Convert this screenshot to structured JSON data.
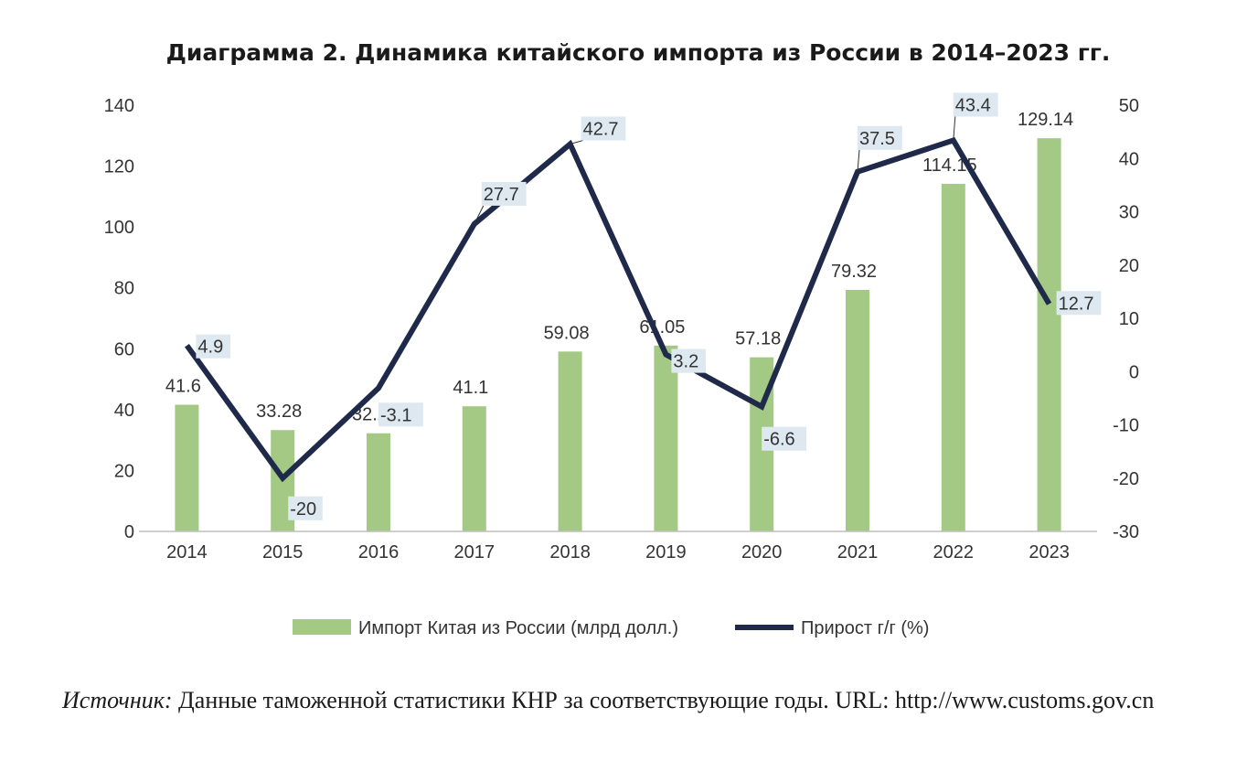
{
  "chart_data": {
    "type": "bar+line",
    "title": "Диаграмма 2. Динамика китайского импорта из России в 2014–2023 гг.",
    "categories": [
      "2014",
      "2015",
      "2016",
      "2017",
      "2018",
      "2019",
      "2020",
      "2021",
      "2022",
      "2023"
    ],
    "series": [
      {
        "name": "Импорт Китая из России (млрд долл.)",
        "type": "bar",
        "axis": "left",
        "color": "#a3c985",
        "values": [
          41.6,
          33.28,
          32.23,
          41.1,
          59.08,
          61.05,
          57.18,
          79.32,
          114.15,
          129.14
        ],
        "labels": [
          "41.6",
          "33.28",
          "32.23",
          "41.1",
          "59.08",
          "61.05",
          "57.18",
          "79.32",
          "114.15",
          "129.14"
        ]
      },
      {
        "name": "Прирост г/г (%)",
        "type": "line",
        "axis": "right",
        "color": "#1f2a4a",
        "values": [
          4.9,
          -20,
          -3.1,
          27.7,
          42.7,
          3.2,
          -6.6,
          37.5,
          43.4,
          12.7
        ],
        "labels": [
          "4.9",
          "-20",
          "-3.1",
          "27.7",
          "42.7",
          "3.2",
          "-6.6",
          "37.5",
          "43.4",
          "12.7"
        ]
      }
    ],
    "y_left": {
      "lim": [
        0,
        140
      ],
      "ticks": [
        "0",
        "20",
        "40",
        "60",
        "80",
        "100",
        "120",
        "140"
      ]
    },
    "y_right": {
      "lim": [
        -30,
        50
      ],
      "ticks": [
        "-30",
        "-20",
        "-10",
        "0",
        "10",
        "20",
        "30",
        "40",
        "50"
      ]
    },
    "grid": false,
    "legend_position": "bottom",
    "line_label_bg": "#dde8f0"
  },
  "source": {
    "label": "Источник:",
    "text": " Данные таможенной статистики КНР за соответствующие годы. URL: http://www.customs.gov.cn"
  }
}
